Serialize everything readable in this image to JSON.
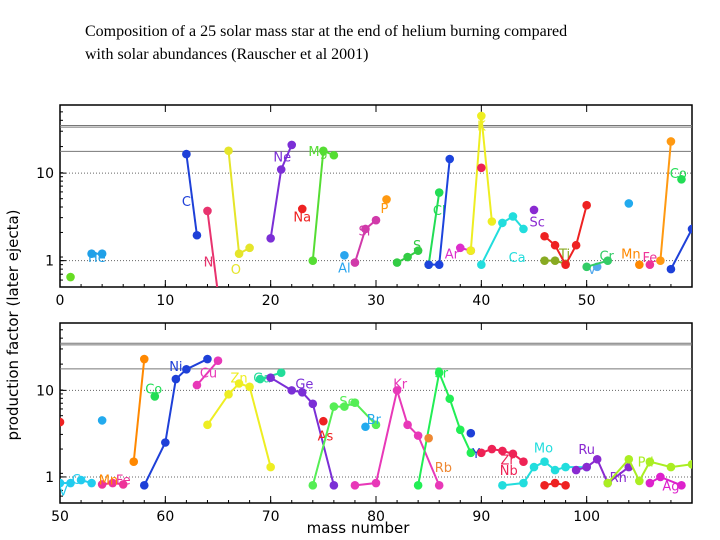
{
  "caption": {
    "line1": "Composition of a 25 solar mass star at the end of helium burning compared",
    "line2": "with solar abundances (Rauscher et al 2001)"
  },
  "chart_data": [
    {
      "type": "scatter",
      "panel": "top",
      "ylabel": "production factor (later ejecta)",
      "xlim": [
        0,
        60
      ],
      "ylim": [
        0.5,
        60
      ],
      "yscale": "log",
      "xticks": [
        0,
        10,
        20,
        30,
        40,
        50
      ],
      "yticks": [
        {
          "value": 1,
          "label": "1"
        },
        {
          "value": 10,
          "label": "10"
        }
      ],
      "reference_lines": [
        17.7,
        33.5,
        35
      ],
      "grid": "dotted",
      "series": [
        {
          "name": "He",
          "color": "#1fa0e8",
          "label_at": [
            3.5,
            1.1
          ],
          "points": [
            [
              3,
              1.2
            ],
            [
              4,
              1.2
            ]
          ]
        },
        {
          "name": "",
          "color": "#66dd22",
          "points": [
            [
              1,
              0.65
            ]
          ]
        },
        {
          "name": "C",
          "color": "#1e40d8",
          "label_at": [
            12,
            4.8
          ],
          "points": [
            [
              12,
              16.5
            ],
            [
              13,
              1.95
            ]
          ]
        },
        {
          "name": "N",
          "color": "#e8336e",
          "label_at": [
            14.1,
            0.98
          ],
          "points": [
            [
              14,
              3.7
            ],
            [
              15,
              0.42
            ]
          ]
        },
        {
          "name": "O",
          "color": "#e5e52a",
          "label_at": [
            16.7,
            0.8
          ],
          "points": [
            [
              16,
              18
            ],
            [
              17,
              1.2
            ],
            [
              18,
              1.4
            ]
          ]
        },
        {
          "name": "Ne",
          "color": "#7b2fd6",
          "label_at": [
            21.1,
            15.5
          ],
          "points": [
            [
              20,
              1.8
            ],
            [
              21,
              11
            ],
            [
              22,
              21
            ]
          ]
        },
        {
          "name": "Na",
          "color": "#ee2222",
          "label_at": [
            23,
            3.2
          ],
          "points": [
            [
              23,
              3.9
            ]
          ]
        },
        {
          "name": "Mg",
          "color": "#55dd33",
          "label_at": [
            24.5,
            18
          ],
          "points": [
            [
              24,
              1.0
            ],
            [
              25,
              18
            ],
            [
              26,
              16
            ]
          ]
        },
        {
          "name": "Al",
          "color": "#2aa5ee",
          "label_at": [
            27,
            0.83
          ],
          "points": [
            [
              27,
              1.15
            ]
          ]
        },
        {
          "name": "Si",
          "color": "#d13aaa",
          "label_at": [
            28.9,
            2.2
          ],
          "points": [
            [
              28,
              0.95
            ],
            [
              29,
              2.3
            ],
            [
              30,
              2.9
            ]
          ]
        },
        {
          "name": "P",
          "color": "#ff9911",
          "label_at": [
            30.8,
            4.0
          ],
          "points": [
            [
              31,
              5.0
            ]
          ]
        },
        {
          "name": "S",
          "color": "#33cc44",
          "label_at": [
            33.9,
            1.5
          ],
          "points": [
            [
              32,
              0.95
            ],
            [
              33,
              1.1
            ],
            [
              34,
              1.3
            ]
          ]
        },
        {
          "name": "Cl",
          "color": "#22dd55",
          "label_at": [
            36,
            3.8
          ],
          "points": [
            [
              35,
              0.9
            ],
            [
              36,
              6.0
            ]
          ]
        },
        {
          "name": "",
          "color": "#1d44dd",
          "points": [
            [
              35,
              0.9
            ],
            [
              36,
              0.9
            ],
            [
              37,
              14.5
            ]
          ]
        },
        {
          "name": "Ar",
          "color": "#dd2ecc",
          "label_at": [
            37.2,
            1.2
          ],
          "points": [
            [
              38,
              1.4
            ],
            [
              39,
              1.3
            ]
          ]
        },
        {
          "name": "K",
          "color": "#eeee22",
          "label_at": [
            40,
            35
          ],
          "points": [
            [
              39,
              1.3
            ],
            [
              40,
              45
            ],
            [
              41,
              2.8
            ]
          ]
        },
        {
          "name": "",
          "color": "#ee2255",
          "points": [
            [
              40,
              11.5
            ]
          ]
        },
        {
          "name": "",
          "color": "#22dddd",
          "points": [
            [
              40,
              0.9
            ],
            [
              42,
              2.7
            ],
            [
              43,
              3.2
            ],
            [
              44,
              2.3
            ]
          ]
        },
        {
          "name": "Ca",
          "color": "#22dddd",
          "label_at": [
            43.4,
            1.1
          ],
          "points": []
        },
        {
          "name": "Sc",
          "color": "#8a2ad1",
          "label_at": [
            45.3,
            2.8
          ],
          "points": [
            [
              45,
              3.8
            ]
          ]
        },
        {
          "name": "Ti",
          "color": "#88aa22",
          "label_at": [
            47.9,
            1.2
          ],
          "points": [
            [
              46,
              1.0
            ],
            [
              47,
              1.0
            ],
            [
              48,
              0.92
            ]
          ]
        },
        {
          "name": "",
          "color": "#ee2222",
          "points": [
            [
              46,
              1.9
            ],
            [
              47,
              1.5
            ],
            [
              48,
              0.9
            ],
            [
              49,
              1.5
            ],
            [
              50,
              4.3
            ]
          ]
        },
        {
          "name": "V",
          "color": "#55aaee",
          "label_at": [
            50.5,
            0.8
          ],
          "points": [
            [
              51,
              0.85
            ]
          ]
        },
        {
          "name": "Cr",
          "color": "#33cc66",
          "label_at": [
            51.9,
            1.15
          ],
          "points": [
            [
              50,
              0.85
            ],
            [
              52,
              1.0
            ]
          ]
        },
        {
          "name": "Mn",
          "color": "#ff8800",
          "label_at": [
            54.2,
            1.2
          ],
          "points": [
            [
              55,
              0.9
            ]
          ]
        },
        {
          "name": "Fe",
          "color": "#ee3399",
          "label_at": [
            56,
            1.1
          ],
          "points": [
            [
              56,
              0.9
            ]
          ]
        },
        {
          "name": "",
          "color": "#22aaee",
          "points": [
            [
              54,
              4.5
            ]
          ]
        },
        {
          "name": "",
          "color": "#ff9911",
          "points": [
            [
              57,
              1.0
            ],
            [
              58,
              23
            ]
          ]
        },
        {
          "name": "Co",
          "color": "#22dd55",
          "label_at": [
            58.7,
            10
          ],
          "points": [
            [
              59,
              8.5
            ]
          ]
        },
        {
          "name": "",
          "color": "#1e40d8",
          "points": [
            [
              58,
              0.8
            ],
            [
              60,
              2.3
            ]
          ]
        }
      ]
    },
    {
      "type": "scatter",
      "panel": "bottom",
      "xlabel": "mass number",
      "xlim": [
        50,
        110
      ],
      "ylim": [
        0.5,
        60
      ],
      "yscale": "log",
      "xticks": [
        50,
        60,
        70,
        80,
        90,
        100
      ],
      "yticks": [
        {
          "value": 1,
          "label": "1"
        },
        {
          "value": 10,
          "label": "10"
        }
      ],
      "reference_lines": [
        17.7,
        33.5,
        35
      ],
      "grid": "dotted",
      "series": [
        {
          "name": "",
          "color": "#ee2222",
          "points": [
            [
              50,
              4.3
            ]
          ]
        },
        {
          "name": "V",
          "color": "#22ccee",
          "label_at": [
            50.3,
            0.7
          ],
          "points": [
            [
              50,
              0.85
            ],
            [
              51,
              0.85
            ]
          ]
        },
        {
          "name": "Cr",
          "color": "#22ccee",
          "label_at": [
            51.8,
            0.95
          ],
          "points": [
            [
              52,
              0.92
            ],
            [
              53,
              0.85
            ]
          ]
        },
        {
          "name": "",
          "color": "#22aaee",
          "points": [
            [
              54,
              4.5
            ]
          ]
        },
        {
          "name": "",
          "color": "#ee3399",
          "points": [
            [
              54,
              0.82
            ],
            [
              55,
              0.85
            ],
            [
              56,
              0.82
            ]
          ]
        },
        {
          "name": "Mn",
          "color": "#ff8800",
          "label_at": [
            54.6,
            0.93
          ],
          "points": [
            [
              57,
              1.5
            ],
            [
              58,
              23
            ]
          ]
        },
        {
          "name": "Fe",
          "color": "#ee3399",
          "label_at": [
            56,
            0.93
          ],
          "points": []
        },
        {
          "name": "Co",
          "color": "#22dd55",
          "label_at": [
            58.9,
            10.5
          ],
          "points": [
            [
              59,
              8.5
            ]
          ]
        },
        {
          "name": "Ni",
          "color": "#1e40d8",
          "label_at": [
            61,
            19
          ],
          "points": [
            [
              58,
              0.8
            ],
            [
              60,
              2.5
            ],
            [
              61,
              13.5
            ],
            [
              62,
              17.5
            ],
            [
              64,
              23
            ]
          ]
        },
        {
          "name": "Cu",
          "color": "#e838b8",
          "label_at": [
            64.1,
            16
          ],
          "points": [
            [
              63,
              11.5
            ],
            [
              65,
              22
            ]
          ]
        },
        {
          "name": "Zn",
          "color": "#eeee22",
          "label_at": [
            67,
            14
          ],
          "points": [
            [
              64,
              4.0
            ],
            [
              66,
              9.0
            ],
            [
              67,
              12
            ],
            [
              68,
              11
            ],
            [
              70,
              1.3
            ]
          ]
        },
        {
          "name": "Ga",
          "color": "#22dd99",
          "label_at": [
            69.2,
            14
          ],
          "points": [
            [
              69,
              13.5
            ],
            [
              71,
              16
            ]
          ]
        },
        {
          "name": "Ge",
          "color": "#7b2fd6",
          "label_at": [
            73.2,
            12
          ],
          "points": [
            [
              70,
              14
            ],
            [
              72,
              10
            ],
            [
              73,
              9.5
            ],
            [
              74,
              7
            ],
            [
              76,
              0.8
            ]
          ]
        },
        {
          "name": "As",
          "color": "#ee2222",
          "label_at": [
            75.2,
            3
          ],
          "points": [
            [
              75,
              4.4
            ]
          ]
        },
        {
          "name": "Se",
          "color": "#55ee55",
          "label_at": [
            77.3,
            7.5
          ],
          "points": [
            [
              74,
              0.8
            ],
            [
              76,
              6.5
            ],
            [
              77,
              6.5
            ],
            [
              78,
              7.2
            ],
            [
              80,
              4.0
            ]
          ]
        },
        {
          "name": "Br",
          "color": "#22aaee",
          "label_at": [
            79.8,
            4.7
          ],
          "points": [
            [
              79,
              3.8
            ]
          ]
        },
        {
          "name": "Kr",
          "color": "#e838b8",
          "label_at": [
            82.3,
            12
          ],
          "points": [
            [
              78,
              0.8
            ],
            [
              80,
              0.85
            ],
            [
              82,
              10
            ],
            [
              83,
              4.0
            ],
            [
              84,
              3.0
            ],
            [
              86,
              0.8
            ]
          ]
        },
        {
          "name": "Sr",
          "color": "#22ee55",
          "label_at": [
            86.2,
            16
          ],
          "points": [
            [
              84,
              0.8
            ],
            [
              86,
              16
            ],
            [
              87,
              8
            ],
            [
              88,
              3.5
            ],
            [
              89,
              1.9
            ]
          ]
        },
        {
          "name": "Rb",
          "color": "#ee8833",
          "label_at": [
            86.4,
            1.3
          ],
          "points": [
            [
              85,
              2.8
            ]
          ]
        },
        {
          "name": "Y",
          "color": "#1e40d8",
          "label_at": [
            89.5,
            1.9
          ],
          "points": [
            [
              89,
              3.2
            ]
          ]
        },
        {
          "name": "Zr",
          "color": "#ee2255",
          "label_at": [
            92.5,
            1.6
          ],
          "points": [
            [
              90,
              1.9
            ],
            [
              91,
              2.1
            ],
            [
              92,
              2.0
            ],
            [
              93,
              1.85
            ],
            [
              94,
              1.5
            ]
          ]
        },
        {
          "name": "Nb",
          "color": "#ee2255",
          "label_at": [
            92.6,
            1.2
          ],
          "points": []
        },
        {
          "name": "Mo",
          "color": "#22dddd",
          "label_at": [
            95.9,
            2.2
          ],
          "points": [
            [
              92,
              0.8
            ],
            [
              94,
              0.85
            ],
            [
              95,
              1.3
            ],
            [
              96,
              1.5
            ],
            [
              97,
              1.2
            ],
            [
              98,
              1.3
            ],
            [
              100,
              1.3
            ]
          ]
        },
        {
          "name": "Ru",
          "color": "#8a2ad1",
          "label_at": [
            100,
            2.1
          ],
          "points": [
            [
              99,
              1.2
            ],
            [
              100,
              1.3
            ],
            [
              101,
              1.6
            ],
            [
              102,
              0.85
            ],
            [
              104,
              1.3
            ]
          ]
        },
        {
          "name": "Rh",
          "color": "#8a2ad1",
          "label_at": [
            103,
            1.0
          ],
          "points": []
        },
        {
          "name": "Pd",
          "color": "#aaee22",
          "label_at": [
            105.6,
            1.5
          ],
          "points": [
            [
              102,
              0.85
            ],
            [
              104,
              1.6
            ],
            [
              105,
              0.9
            ],
            [
              106,
              1.5
            ],
            [
              108,
              1.3
            ],
            [
              110,
              1.4
            ]
          ]
        },
        {
          "name": "Ag",
          "color": "#dd22cc",
          "label_at": [
            108,
            0.8
          ],
          "points": [
            [
              106,
              0.85
            ],
            [
              107,
              1.0
            ],
            [
              109,
              0.8
            ]
          ]
        },
        {
          "name": "",
          "color": "#ee2222",
          "points": [
            [
              96,
              0.8
            ],
            [
              97,
              0.85
            ],
            [
              98,
              0.8
            ]
          ]
        }
      ]
    }
  ]
}
